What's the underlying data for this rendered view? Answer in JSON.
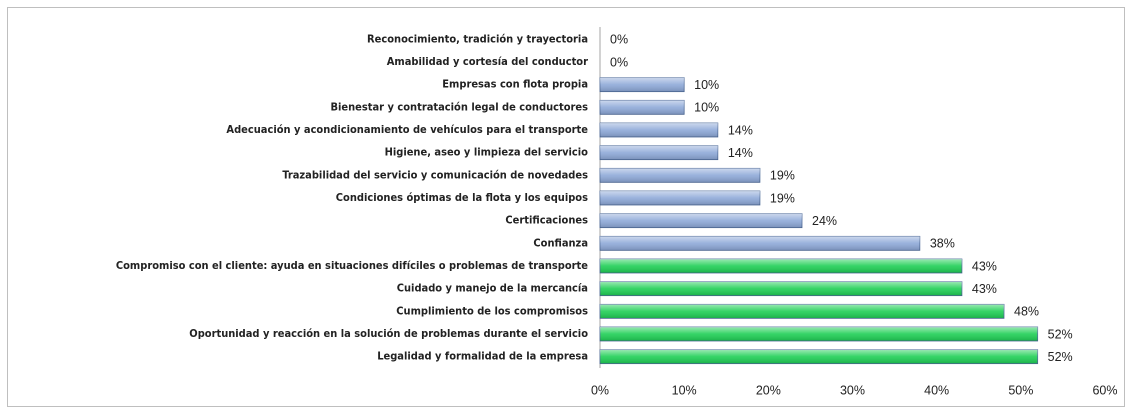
{
  "chart_data": {
    "type": "bar",
    "orientation": "horizontal",
    "categories": [
      "Reconocimiento, tradición y trayectoria",
      "Amabilidad y cortesía del conductor",
      "Empresas con flota propia",
      "Bienestar y contratación legal de conductores",
      "Adecuación y acondicionamiento de vehículos para el transporte",
      "Higiene, aseo y limpieza del servicio",
      "Trazabilidad del servicio y comunicación de novedades",
      "Condiciones óptimas de la flota y los equipos",
      "Certificaciones",
      "Confianza",
      "Compromiso con el cliente: ayuda en situaciones difíciles o problemas de transporte",
      "Cuidado y manejo  de la mercancía",
      "Cumplimiento de los compromisos",
      "Oportunidad y reacción en la solución de problemas durante el servicio",
      "Legalidad y formalidad de la empresa"
    ],
    "values": [
      0,
      0,
      10,
      10,
      14,
      14,
      19,
      19,
      24,
      38,
      43,
      43,
      48,
      52,
      52
    ],
    "value_labels": [
      "0%",
      "0%",
      "10%",
      "10%",
      "14%",
      "14%",
      "19%",
      "19%",
      "24%",
      "38%",
      "43%",
      "43%",
      "48%",
      "52%",
      "52%"
    ],
    "colors": [
      "#8ea9d8",
      "#8ea9d8",
      "#8ea9d8",
      "#8ea9d8",
      "#8ea9d8",
      "#8ea9d8",
      "#8ea9d8",
      "#8ea9d8",
      "#8ea9d8",
      "#8ea9d8",
      "#1fcf55",
      "#1fcf55",
      "#1fcf55",
      "#1fcf55",
      "#1fcf55"
    ],
    "xlim": [
      0,
      60
    ],
    "xticks": [
      {
        "value": 0,
        "label": "0%"
      },
      {
        "value": 10,
        "label": "10%"
      },
      {
        "value": 20,
        "label": "20%"
      },
      {
        "value": 30,
        "label": "30%"
      },
      {
        "value": 40,
        "label": "40%"
      },
      {
        "value": 50,
        "label": "50%"
      },
      {
        "value": 60,
        "label": "60%"
      }
    ],
    "grid": false
  }
}
